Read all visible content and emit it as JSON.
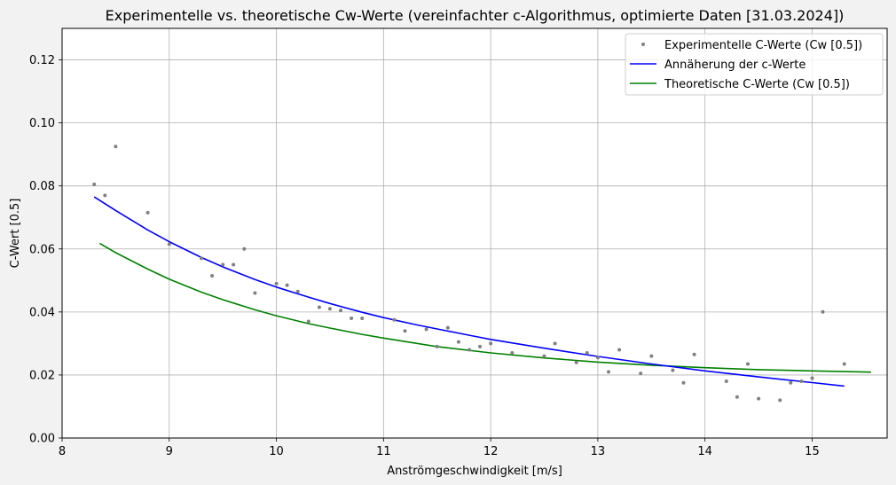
{
  "chart_data": {
    "type": "scatter",
    "title": "Experimentelle vs. theoretische Cw-Werte (vereinfachter c-Algorithmus, optimierte Daten [31.03.2024])",
    "xlabel": "Anströmgeschwindigkeit [m/s]",
    "ylabel": "C-Wert [0.5]",
    "xlim": [
      8.0,
      15.7
    ],
    "ylim": [
      0.0,
      0.13
    ],
    "xticks": [
      "8",
      "9",
      "10",
      "11",
      "12",
      "13",
      "14",
      "15"
    ],
    "yticks": [
      "0.00",
      "0.02",
      "0.04",
      "0.06",
      "0.08",
      "0.10",
      "0.12"
    ],
    "grid": true,
    "legend_position": "top-right",
    "colors": {
      "scatter": "#808080",
      "fit": "#0000ff",
      "theory": "#008000",
      "background": "#f2f2f2"
    },
    "series": [
      {
        "name": "Experimentelle C-Werte (Cw [0.5])",
        "kind": "scatter",
        "x": [
          8.3,
          8.4,
          8.5,
          8.8,
          9.0,
          9.3,
          9.4,
          9.5,
          9.6,
          9.7,
          9.8,
          10.0,
          10.1,
          10.2,
          10.3,
          10.4,
          10.5,
          10.6,
          10.7,
          10.8,
          11.1,
          11.2,
          11.4,
          11.5,
          11.6,
          11.7,
          11.8,
          11.9,
          12.0,
          12.2,
          12.5,
          12.6,
          12.8,
          12.9,
          13.0,
          13.1,
          13.2,
          13.4,
          13.5,
          13.7,
          13.8,
          13.9,
          14.2,
          14.3,
          14.4,
          14.5,
          14.7,
          14.8,
          14.9,
          15.0,
          15.1,
          15.3
        ],
        "y": [
          0.0805,
          0.077,
          0.0925,
          0.0715,
          0.0615,
          0.057,
          0.0515,
          0.055,
          0.055,
          0.06,
          0.046,
          0.049,
          0.0485,
          0.0465,
          0.037,
          0.0415,
          0.041,
          0.0405,
          0.038,
          0.038,
          0.0375,
          0.034,
          0.0345,
          0.029,
          0.035,
          0.0305,
          0.028,
          0.029,
          0.03,
          0.027,
          0.026,
          0.03,
          0.024,
          0.027,
          0.0255,
          0.021,
          0.028,
          0.0205,
          0.026,
          0.0215,
          0.0175,
          0.0265,
          0.018,
          0.013,
          0.0235,
          0.0125,
          0.012,
          0.0175,
          0.018,
          0.019,
          0.04,
          0.0235
        ]
      },
      {
        "name": "Annäherung der c-Werte",
        "kind": "line",
        "x": [
          8.3,
          8.5,
          8.8,
          9.0,
          9.3,
          9.5,
          9.8,
          10.0,
          10.3,
          10.5,
          10.8,
          11.0,
          11.3,
          11.5,
          11.8,
          12.0,
          12.5,
          13.0,
          13.5,
          14.0,
          14.5,
          15.0,
          15.3
        ],
        "y": [
          0.0765,
          0.0722,
          0.066,
          0.0623,
          0.0573,
          0.0543,
          0.0503,
          0.0479,
          0.0447,
          0.0427,
          0.0399,
          0.0382,
          0.036,
          0.0346,
          0.0326,
          0.0313,
          0.0285,
          0.0259,
          0.0235,
          0.0213,
          0.0194,
          0.0176,
          0.0165
        ]
      },
      {
        "name": "Theoretische C-Werte (Cw [0.5])",
        "kind": "line",
        "x": [
          8.35,
          8.5,
          8.8,
          9.0,
          9.3,
          9.5,
          9.8,
          10.0,
          10.3,
          10.5,
          10.8,
          11.0,
          11.5,
          12.0,
          12.5,
          13.0,
          13.5,
          14.0,
          14.5,
          15.0,
          15.55
        ],
        "y": [
          0.0618,
          0.0588,
          0.0536,
          0.0504,
          0.0463,
          0.0439,
          0.0407,
          0.0388,
          0.0363,
          0.0349,
          0.0329,
          0.0317,
          0.029,
          0.027,
          0.0254,
          0.0241,
          0.0231,
          0.0223,
          0.0217,
          0.0213,
          0.0209
        ]
      }
    ]
  }
}
